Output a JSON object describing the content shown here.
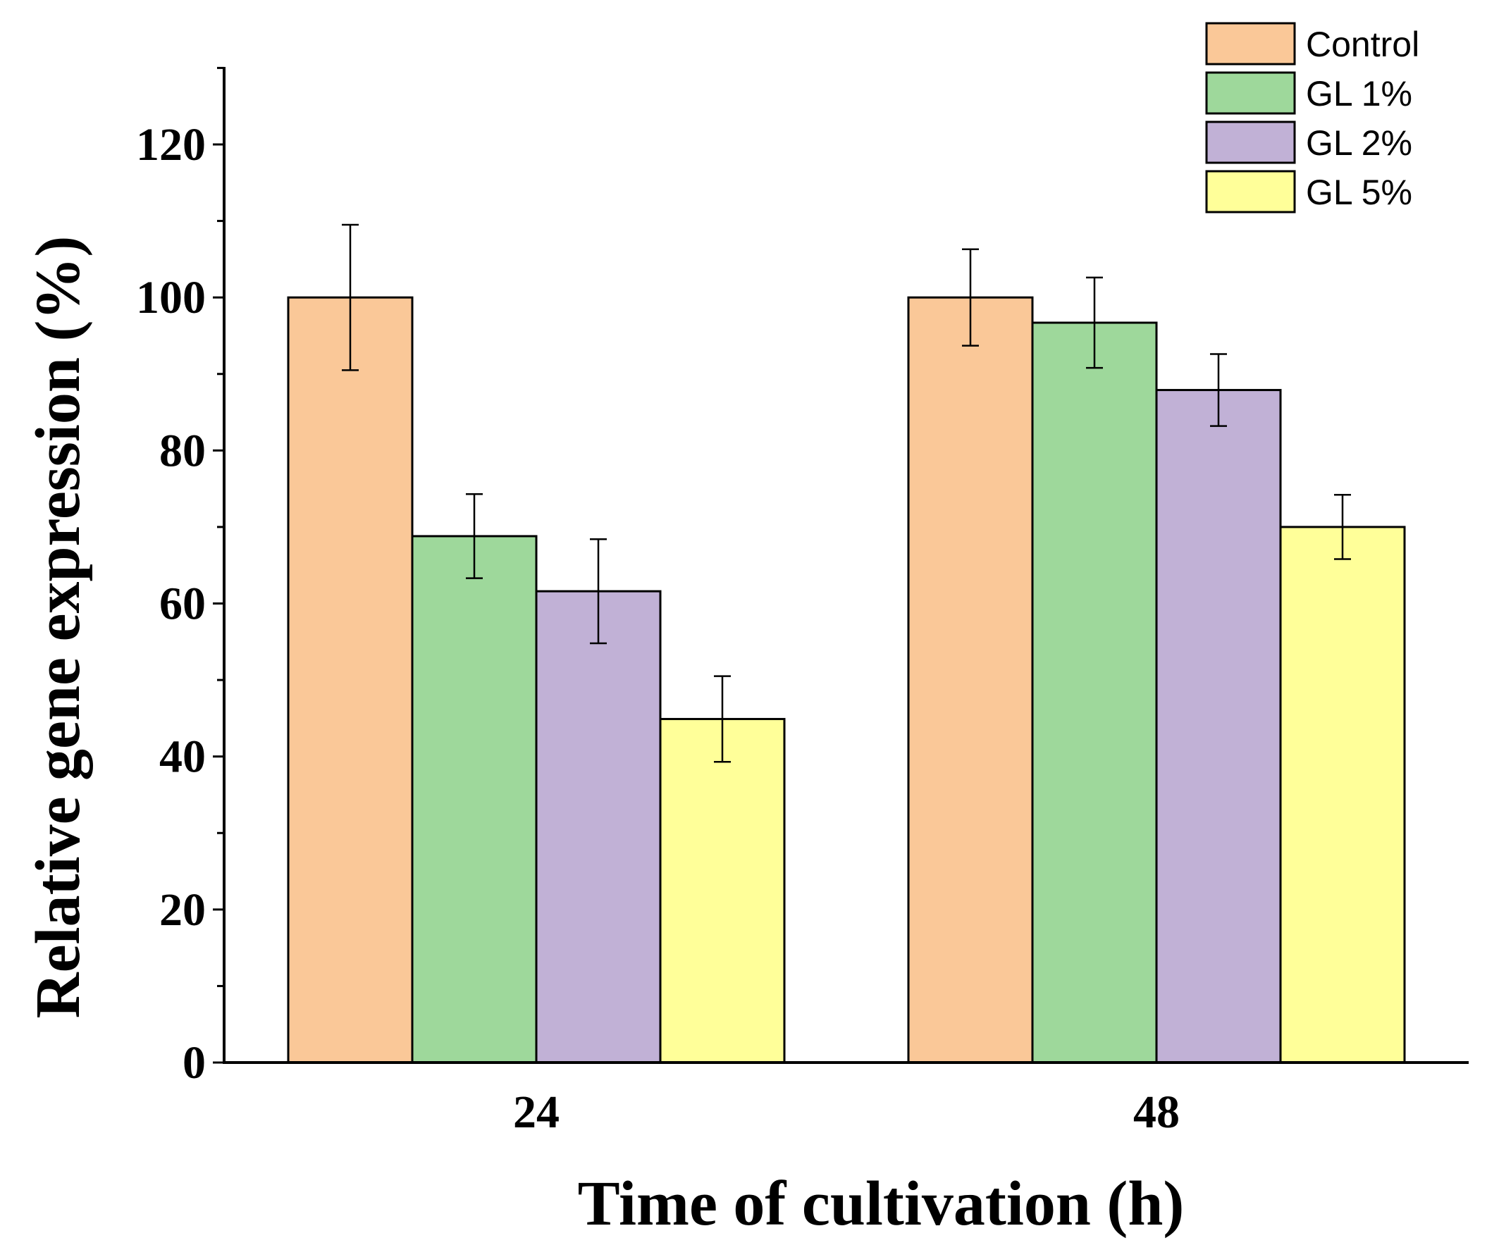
{
  "chart_data": {
    "type": "bar",
    "xlabel": "Time of cultivation (h)",
    "ylabel": "Relative gene expression (%)",
    "ylim": [
      0,
      130
    ],
    "yticks_major": [
      0,
      20,
      40,
      60,
      80,
      100,
      120
    ],
    "yticks_minor_step": 10,
    "categories": [
      "24",
      "48"
    ],
    "legend_position": "top-right",
    "grid": false,
    "series": [
      {
        "name": "Control",
        "color": "#FAC898",
        "values": [
          100,
          100
        ],
        "errors": [
          9.5,
          6.3
        ]
      },
      {
        "name": "GL 1%",
        "color": "#9ED89B",
        "values": [
          68.8,
          96.7
        ],
        "errors": [
          5.5,
          5.9
        ]
      },
      {
        "name": "GL 2%",
        "color": "#C1B1D6",
        "values": [
          61.6,
          87.9
        ],
        "errors": [
          6.8,
          4.7
        ]
      },
      {
        "name": "GL 5%",
        "color": "#FFFF99",
        "values": [
          44.9,
          70.0
        ],
        "errors": [
          5.6,
          4.2
        ]
      }
    ]
  }
}
